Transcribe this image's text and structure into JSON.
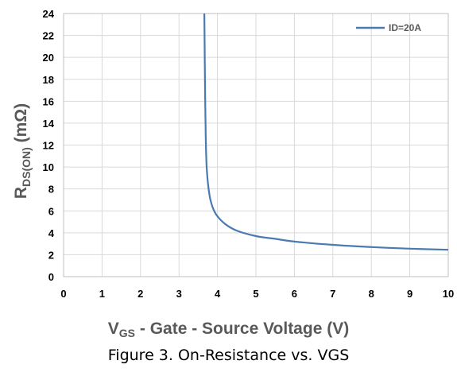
{
  "chart_data": {
    "type": "line",
    "ylabel_main": "R",
    "ylabel_sub": "DS(ON)",
    "ylabel_unit": "(mΩ)",
    "xlabel_main": "V",
    "xlabel_sub": "GS",
    "xlabel_rest": "- Gate - Source Voltage (V)",
    "caption": "Figure 3. On-Resistance vs. VGS",
    "xlim": [
      0,
      10
    ],
    "ylim": [
      0,
      24
    ],
    "xticks": [
      "0",
      "1",
      "2",
      "3",
      "4",
      "5",
      "6",
      "7",
      "8",
      "9",
      "10"
    ],
    "yticks": [
      "0",
      "2",
      "4",
      "6",
      "8",
      "10",
      "12",
      "14",
      "16",
      "18",
      "20",
      "22",
      "24"
    ],
    "grid": true,
    "legend_position": "top-right",
    "series": [
      {
        "name": "ID=20A",
        "color": "#4a7ab0",
        "x": [
          3.66,
          3.67,
          3.68,
          3.69,
          3.7,
          3.72,
          3.75,
          3.8,
          3.85,
          3.9,
          4.0,
          4.2,
          4.5,
          5.0,
          5.5,
          6.0,
          7.0,
          8.0,
          9.0,
          10.0
        ],
        "y": [
          24.0,
          20.0,
          16.5,
          14.0,
          12.0,
          10.0,
          8.6,
          7.3,
          6.6,
          6.1,
          5.5,
          4.8,
          4.2,
          3.7,
          3.45,
          3.2,
          2.9,
          2.7,
          2.55,
          2.45
        ]
      }
    ]
  }
}
